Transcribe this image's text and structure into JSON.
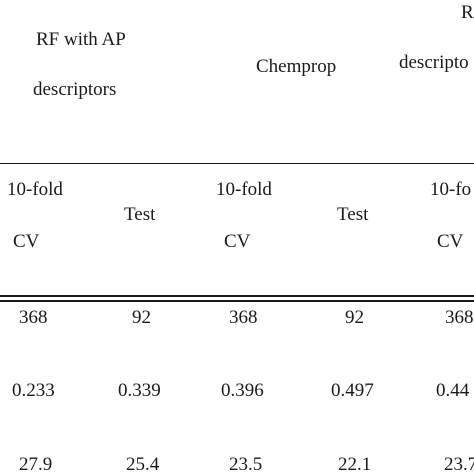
{
  "header": {
    "group1": {
      "line1": "RF with AP",
      "line2": "descriptors"
    },
    "group2": {
      "label": "Chemprop"
    },
    "group3": {
      "line1": "R",
      "line2": "descripto"
    }
  },
  "subheader": {
    "cv_line1": "10-fold",
    "cv_line2": "CV",
    "test": "Test",
    "cv_line1_partial": "10-fo"
  },
  "rows": [
    [
      "368",
      "92",
      "368",
      "92",
      "368"
    ],
    [
      "0.233",
      "0.339",
      "0.396",
      "0.497",
      "0.44"
    ],
    [
      "27.9",
      "25.4",
      "23.5",
      "22.1",
      "23.7"
    ]
  ]
}
